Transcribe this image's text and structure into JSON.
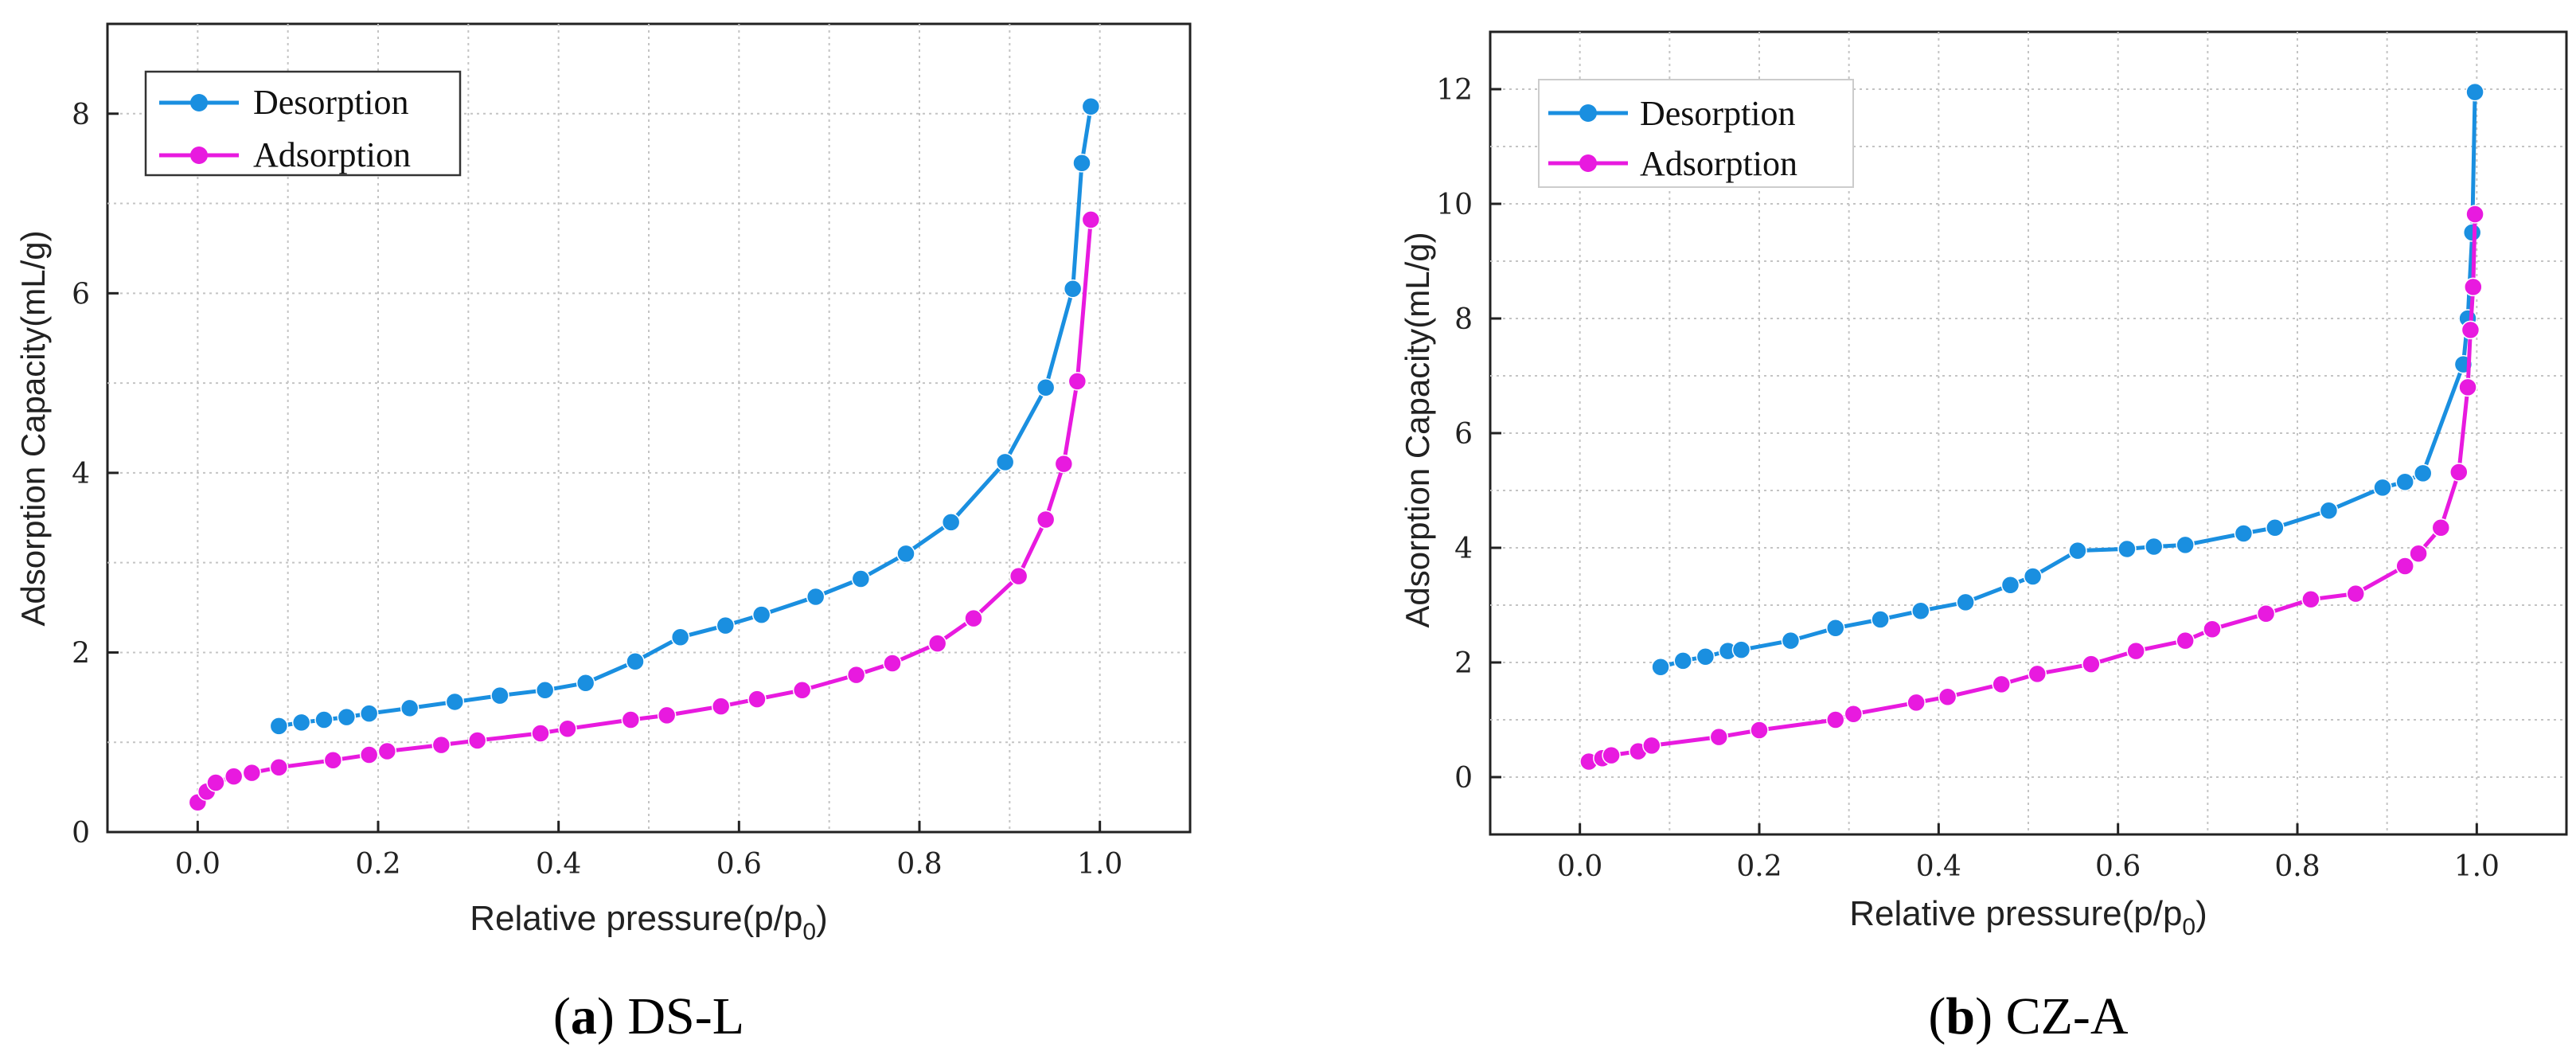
{
  "chart_data": [
    {
      "type": "line",
      "panel_id": "a",
      "caption_letter": "a",
      "caption_text": " DS-L",
      "xlabel": "Relative pressure(p/p",
      "xlabel_sub": "0",
      "xlabel_close": ")",
      "ylabel": "Adsorption Capacity(mL/g)",
      "xlim": [
        -0.1,
        1.1
      ],
      "ylim": [
        0,
        9
      ],
      "xticks": [
        0.0,
        0.2,
        0.4,
        0.6,
        0.8,
        1.0
      ],
      "xtick_labels": [
        "0.0",
        "0.2",
        "0.4",
        "0.6",
        "0.8",
        "1.0"
      ],
      "yticks": [
        0,
        2,
        4,
        6,
        8
      ],
      "ytick_labels": [
        "0",
        "2",
        "4",
        "6",
        "8"
      ],
      "grid": true,
      "legend_position": "top-left",
      "series": [
        {
          "name": "Desorption",
          "color": "#1a8fe0",
          "x": [
            0.09,
            0.115,
            0.14,
            0.165,
            0.19,
            0.235,
            0.285,
            0.335,
            0.385,
            0.43,
            0.485,
            0.535,
            0.585,
            0.625,
            0.685,
            0.735,
            0.785,
            0.835,
            0.895,
            0.94,
            0.97,
            0.98,
            0.99
          ],
          "y": [
            1.18,
            1.22,
            1.25,
            1.28,
            1.32,
            1.38,
            1.45,
            1.52,
            1.58,
            1.66,
            1.9,
            2.17,
            2.3,
            2.42,
            2.62,
            2.82,
            3.1,
            3.45,
            4.12,
            4.95,
            6.05,
            7.45,
            8.08
          ]
        },
        {
          "name": "Adsorption",
          "color": "#e81adf",
          "x": [
            0.0,
            0.01,
            0.02,
            0.04,
            0.06,
            0.09,
            0.15,
            0.19,
            0.21,
            0.27,
            0.31,
            0.38,
            0.41,
            0.48,
            0.52,
            0.58,
            0.62,
            0.67,
            0.73,
            0.77,
            0.82,
            0.86,
            0.91,
            0.94,
            0.96,
            0.975,
            0.99
          ],
          "y": [
            0.33,
            0.45,
            0.55,
            0.62,
            0.66,
            0.72,
            0.8,
            0.86,
            0.9,
            0.97,
            1.02,
            1.1,
            1.15,
            1.25,
            1.3,
            1.4,
            1.48,
            1.58,
            1.75,
            1.88,
            2.1,
            2.38,
            2.85,
            3.48,
            4.1,
            5.02,
            6.82
          ]
        }
      ]
    },
    {
      "type": "line",
      "panel_id": "b",
      "caption_letter": "b",
      "caption_text": " CZ-A",
      "xlabel": "Relative pressure(p/p",
      "xlabel_sub": "0",
      "xlabel_close": ")",
      "ylabel": "Adsorption Capacity(mL/g)",
      "xlim": [
        -0.1,
        1.1
      ],
      "ylim": [
        -1,
        13
      ],
      "xticks": [
        0.0,
        0.2,
        0.4,
        0.6,
        0.8,
        1.0
      ],
      "xtick_labels": [
        "0.0",
        "0.2",
        "0.4",
        "0.6",
        "0.8",
        "1.0"
      ],
      "yticks": [
        0,
        2,
        4,
        6,
        8,
        10,
        12
      ],
      "ytick_labels": [
        "0",
        "2",
        "4",
        "6",
        "8",
        "10",
        "12"
      ],
      "grid": true,
      "legend_position": "top-left",
      "series": [
        {
          "name": "Desorption",
          "color": "#1a8fe0",
          "x": [
            0.09,
            0.115,
            0.14,
            0.165,
            0.18,
            0.235,
            0.285,
            0.335,
            0.38,
            0.43,
            0.48,
            0.505,
            0.555,
            0.61,
            0.64,
            0.675,
            0.74,
            0.775,
            0.835,
            0.895,
            0.92,
            0.94,
            0.985,
            0.99,
            0.995,
            0.998
          ],
          "y": [
            1.92,
            2.03,
            2.1,
            2.2,
            2.22,
            2.38,
            2.6,
            2.75,
            2.9,
            3.05,
            3.35,
            3.5,
            3.95,
            3.98,
            4.02,
            4.05,
            4.25,
            4.35,
            4.65,
            5.05,
            5.15,
            5.3,
            7.2,
            8.0,
            9.5,
            11.95
          ]
        },
        {
          "name": "Adsorption",
          "color": "#e81adf",
          "x": [
            0.01,
            0.025,
            0.035,
            0.065,
            0.08,
            0.155,
            0.2,
            0.285,
            0.305,
            0.375,
            0.41,
            0.47,
            0.51,
            0.57,
            0.62,
            0.675,
            0.705,
            0.765,
            0.815,
            0.865,
            0.92,
            0.935,
            0.96,
            0.98,
            0.99,
            0.993,
            0.996,
            0.998
          ],
          "y": [
            0.27,
            0.33,
            0.38,
            0.45,
            0.55,
            0.7,
            0.82,
            1.0,
            1.1,
            1.3,
            1.4,
            1.62,
            1.8,
            1.97,
            2.2,
            2.38,
            2.58,
            2.85,
            3.1,
            3.2,
            3.68,
            3.9,
            4.35,
            5.32,
            6.8,
            7.8,
            8.55,
            9.82
          ]
        }
      ]
    }
  ]
}
